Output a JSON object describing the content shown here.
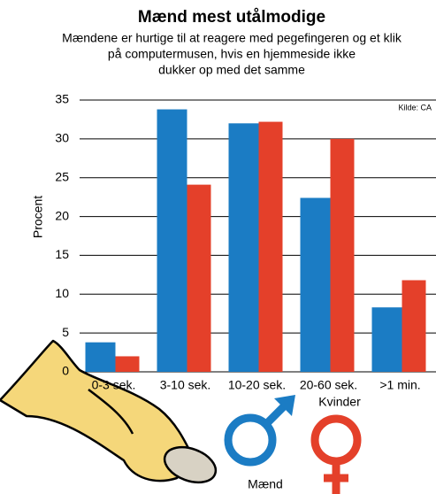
{
  "chart_data": {
    "type": "bar",
    "title": "Mænd mest utålmodige",
    "subtitle": [
      "Mændene er hurtige til at reagere med pegefingeren og et klik",
      "på computermusen, hvis en hjemmeside ikke",
      "dukker op med det samme"
    ],
    "source": "Kilde: CA",
    "y_label": "Procent",
    "categories": [
      "0-3 sek.",
      "3-10 sek.",
      "10-20 sek.",
      "20-60 sek.",
      ">1 min."
    ],
    "series": [
      {
        "name": "Mænd",
        "color": "#1b7cc4",
        "values": [
          3.8,
          33.8,
          32,
          22.4,
          8.3
        ]
      },
      {
        "name": "Kvinder",
        "color": "#e4402a",
        "values": [
          2,
          24.1,
          32.2,
          30,
          11.8
        ]
      }
    ],
    "ylim": [
      0,
      35
    ],
    "yticks": [
      0,
      5,
      10,
      15,
      20,
      25,
      30,
      35
    ],
    "grid": true
  }
}
